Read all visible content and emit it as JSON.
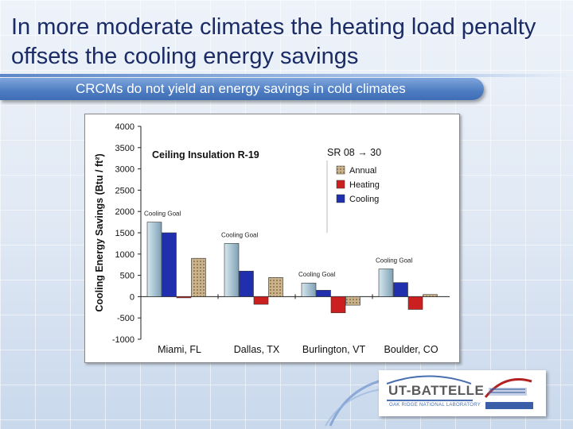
{
  "slide": {
    "title": "In more moderate climates the heating load penalty offsets the cooling energy savings",
    "subtitle": "CRCMs do not yield an energy savings in cold climates"
  },
  "chart_data": {
    "type": "bar",
    "title": "Ceiling Insulation R-19",
    "legend_title": "SR 08 → 30",
    "ylabel": "Cooling Energy Savings (Btu / ft²)",
    "xlabel": "",
    "ylim": [
      -1000,
      4000
    ],
    "yticks": [
      4000,
      3500,
      3000,
      2500,
      2000,
      1500,
      1000,
      500,
      0,
      -500,
      -1000
    ],
    "categories": [
      "Miami, FL",
      "Dallas, TX",
      "Burlington, VT",
      "Boulder, CO"
    ],
    "goal_label": "Cooling Goal",
    "goal_values": [
      1750,
      1250,
      320,
      650
    ],
    "series": [
      {
        "name": "Annual",
        "color": "#b39a72",
        "values": [
          900,
          450,
          -200,
          50
        ]
      },
      {
        "name": "Heating",
        "color": "#cc1f1f",
        "values": [
          0,
          -180,
          -380,
          -300
        ]
      },
      {
        "name": "Cooling",
        "color": "#1f2fae",
        "values": [
          1500,
          600,
          150,
          330
        ]
      }
    ],
    "grid": false,
    "legend_position": "top-right"
  },
  "logo": {
    "org": "UT-BATTELLE",
    "sub": "OAK RIDGE NATIONAL LABORATORY",
    "doe": "ENERGY"
  },
  "colors": {
    "title": "#1a2b66",
    "banner": "#4d7cc2",
    "goal_bar": "#9fbccc"
  }
}
